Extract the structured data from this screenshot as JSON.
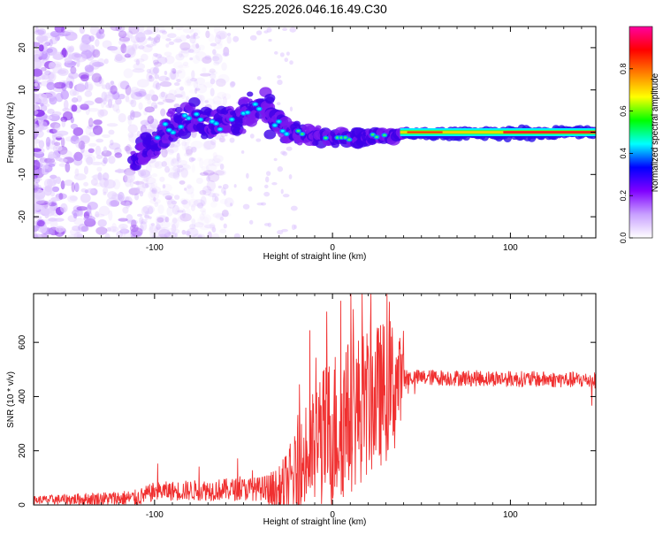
{
  "title": "S225.2026.046.16.49.C30",
  "colors": {
    "snr_line": "#f03030",
    "axis": "#000000",
    "band": "#5a1ee0"
  },
  "chart_data": [
    {
      "type": "heatmap",
      "name": "spectrogram",
      "xlabel": "Height of straight line (km)",
      "ylabel": "Frequency (Hz)",
      "xlim": [
        -168,
        148
      ],
      "ylim": [
        -25,
        25
      ],
      "x_ticks": [
        -100,
        0,
        100
      ],
      "x_tick_labels": [
        "-100",
        "0",
        "100"
      ],
      "y_ticks": [
        -20,
        -10,
        0,
        10,
        20
      ],
      "y_tick_labels": [
        "-20",
        "-10",
        "0",
        "10",
        "20"
      ],
      "colorbar": {
        "label": "Normalized spectral amplitude",
        "range": [
          0,
          1
        ],
        "ticks": [
          0.0,
          0.2,
          0.4,
          0.6,
          0.8
        ],
        "tick_labels": [
          "0.0",
          "0.2",
          "0.4",
          "0.6",
          "0.8"
        ],
        "stops": [
          "#ffffff",
          "#c8a0ff",
          "#8000ff",
          "#0000ff",
          "#00ffff",
          "#00ff00",
          "#ffff00",
          "#ff8000",
          "#ff0000",
          "#ff00a0"
        ]
      },
      "signal": {
        "center_freq_trend": [
          [
            -110,
            -6
          ],
          [
            -85,
            3
          ],
          [
            -65,
            2
          ],
          [
            -40,
            6
          ],
          [
            -25,
            0
          ],
          [
            0,
            -1.5
          ],
          [
            40,
            -0.5
          ],
          [
            150,
            0
          ]
        ],
        "note": "noisy scatter for x < -100, converging narrow band at ~0 Hz for x > 40"
      }
    },
    {
      "type": "line",
      "name": "snr",
      "xlabel": "Height of straight line (km)",
      "ylabel": "SNR (10 * v/v)",
      "xlim": [
        -168,
        148
      ],
      "ylim": [
        0,
        780
      ],
      "x_ticks": [
        -100,
        0,
        100
      ],
      "x_tick_labels": [
        "-100",
        "0",
        "100"
      ],
      "y_ticks": [
        0,
        200,
        400,
        600
      ],
      "y_tick_labels": [
        "0",
        "200",
        "400",
        "600"
      ],
      "envelope": [
        [
          -168,
          18
        ],
        [
          -110,
          25
        ],
        [
          -100,
          50
        ],
        [
          -40,
          60
        ],
        [
          -30,
          40
        ],
        [
          -20,
          120
        ],
        [
          -5,
          250
        ],
        [
          10,
          330
        ],
        [
          20,
          380
        ],
        [
          30,
          420
        ],
        [
          40,
          470
        ],
        [
          60,
          470
        ],
        [
          148,
          460
        ]
      ],
      "noise_amplitude": [
        [
          -168,
          15
        ],
        [
          -100,
          35
        ],
        [
          -40,
          45
        ],
        [
          -20,
          160
        ],
        [
          0,
          300
        ],
        [
          35,
          260
        ],
        [
          42,
          30
        ],
        [
          148,
          30
        ]
      ]
    }
  ]
}
